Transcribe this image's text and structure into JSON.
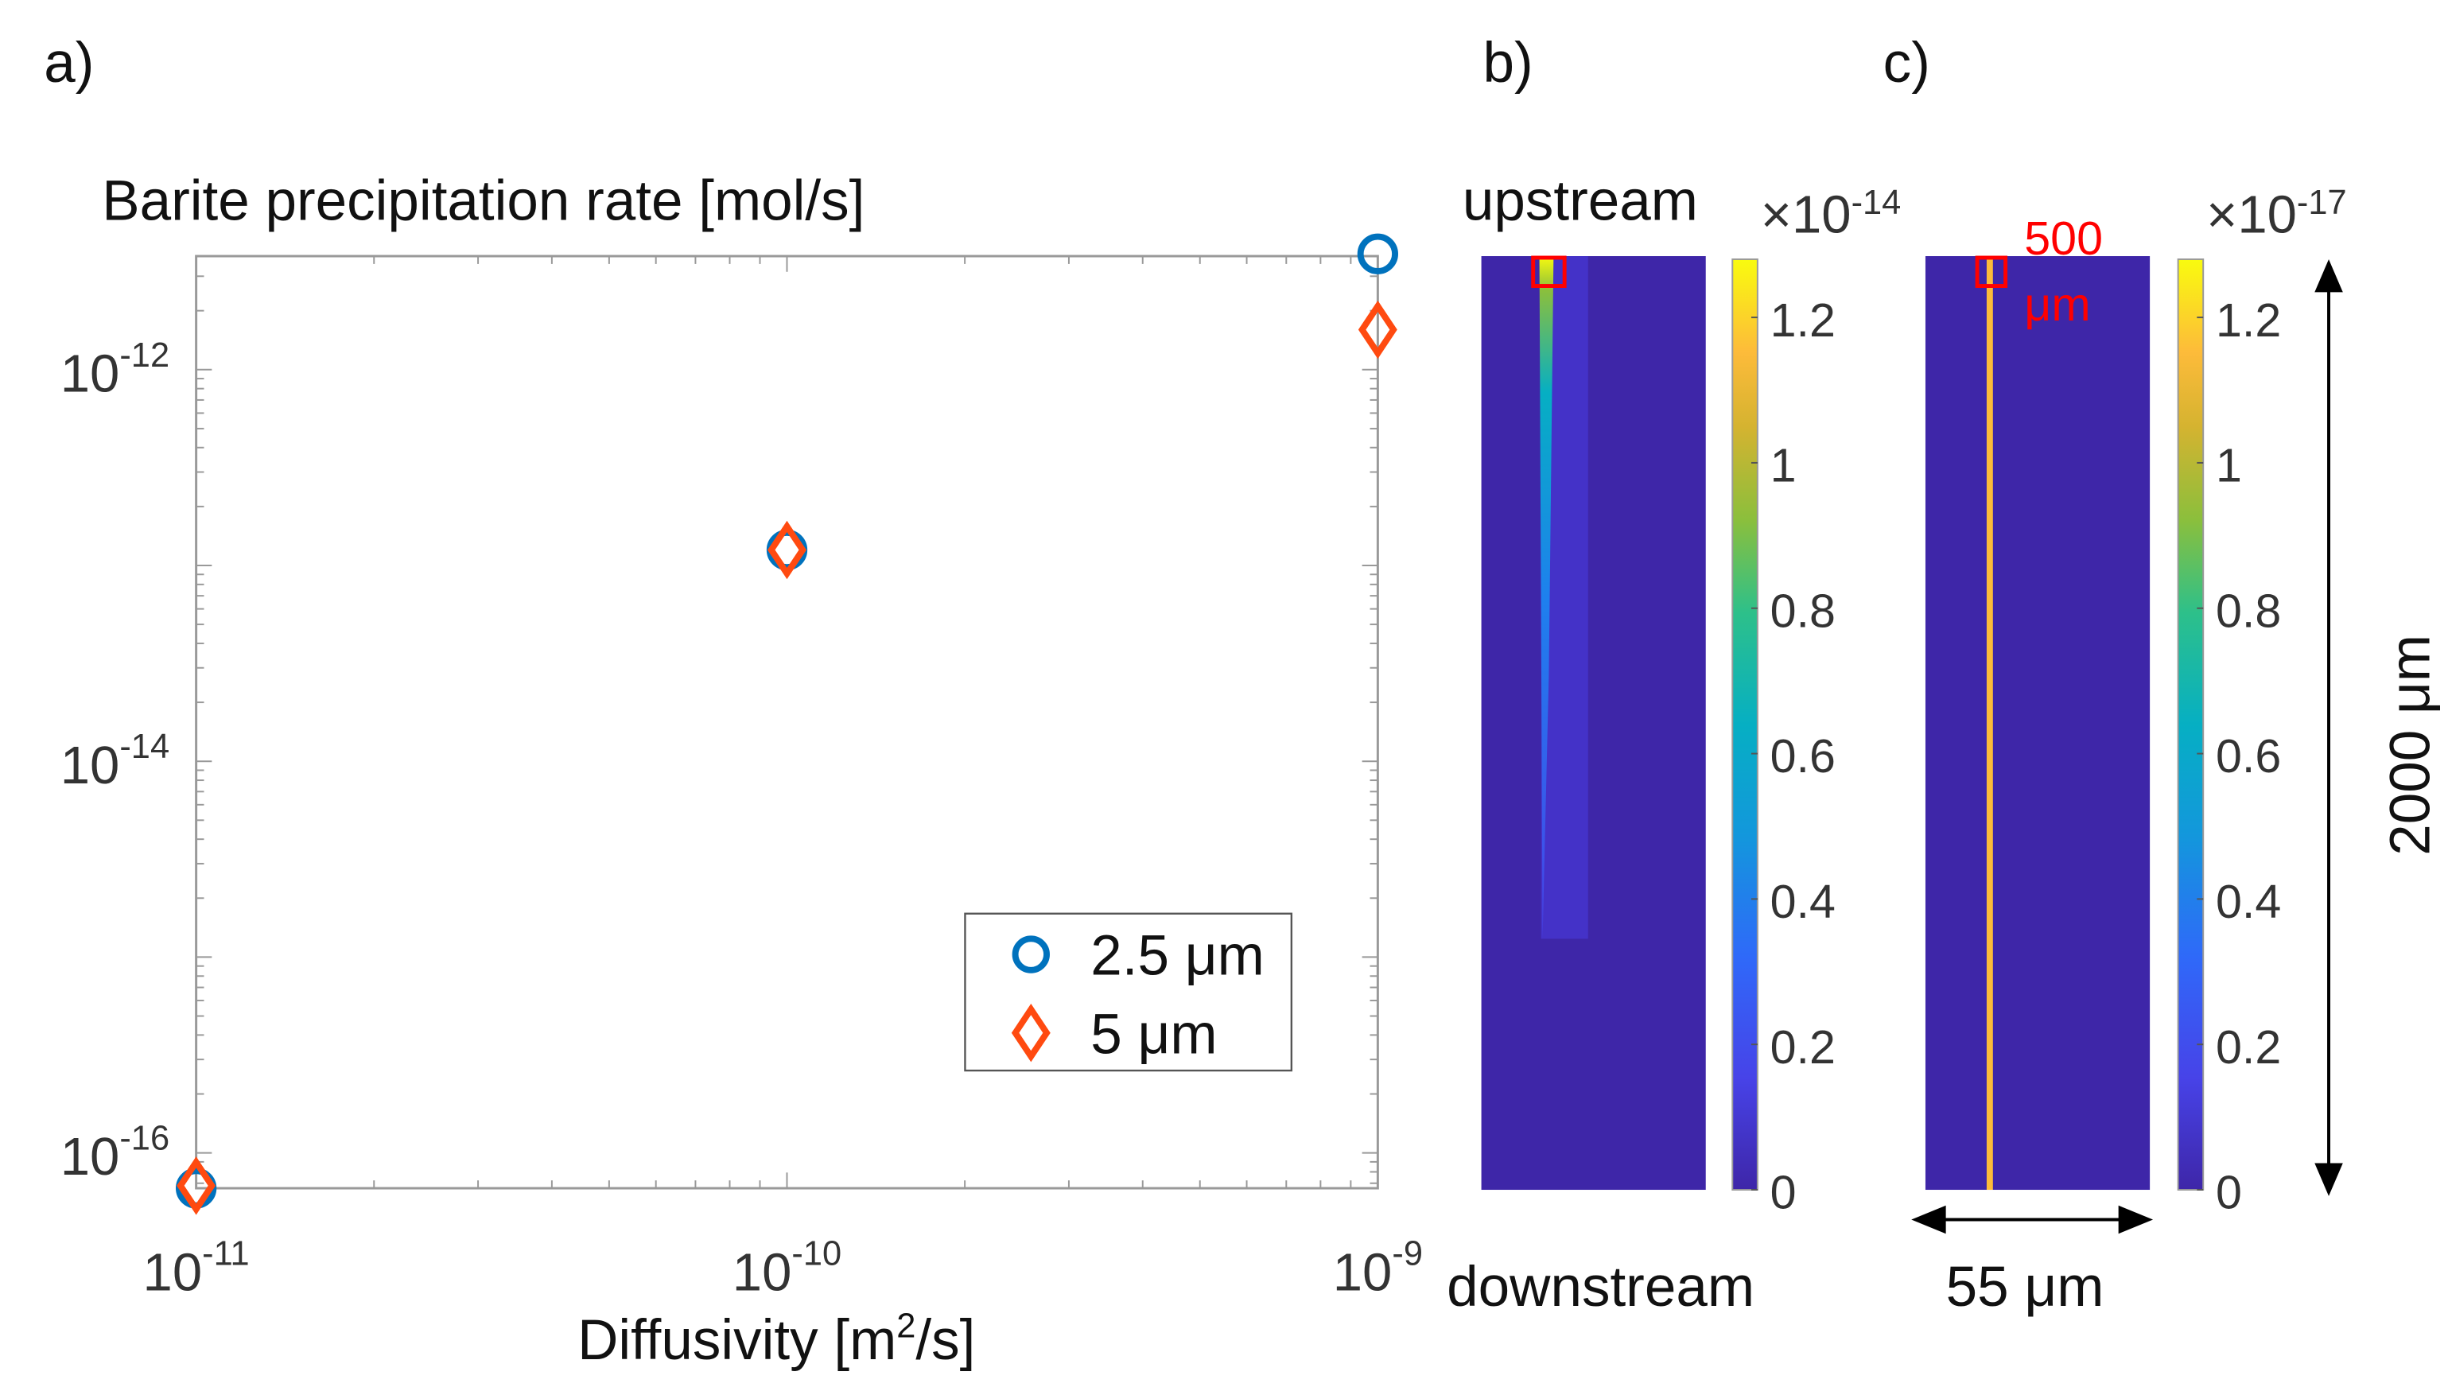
{
  "panels": {
    "a": {
      "label": "a)"
    },
    "b": {
      "label": "b)",
      "top_label": "upstream",
      "bottom_label": "downstream",
      "multiplier": "×10",
      "multiplier_exp": "-14"
    },
    "c": {
      "label": "c)",
      "annotation_line1": "500",
      "annotation_line2": "μm",
      "multiplier": "×10",
      "multiplier_exp": "-17",
      "width_label": "55 μm",
      "height_label": "2000 μm"
    }
  },
  "colorbar_ticks": [
    "0",
    "0.2",
    "0.4",
    "0.6",
    "0.8",
    "1",
    "1.2"
  ],
  "colors": {
    "circle": "#0072BD",
    "diamond": "#FF4A10",
    "field": "#3E26A8",
    "box": "#FF0000"
  },
  "chart_data": {
    "type": "scatter",
    "title": "Barite precipitation rate [mol/s]",
    "xlabel": "Diffusivity [m",
    "xlabel_sup": "2",
    "xlabel_end": "/s]",
    "xscale": "log",
    "yscale": "log",
    "xlim": [
      1e-11,
      1e-09
    ],
    "ylim": [
      6.6e-17,
      3.8e-12
    ],
    "xticks": [
      {
        "base": "10",
        "exp": "-11",
        "value": 1e-11
      },
      {
        "base": "10",
        "exp": "-10",
        "value": 1e-10
      },
      {
        "base": "10",
        "exp": "-9",
        "value": 1e-09
      }
    ],
    "yticks": [
      {
        "base": "10",
        "exp": "-12",
        "value": 1e-12
      },
      {
        "base": "10",
        "exp": "-14",
        "value": 1e-14
      },
      {
        "base": "10",
        "exp": "-16",
        "value": 1e-16
      }
    ],
    "legend_position": "bottom-right",
    "series": [
      {
        "name": "2.5 μm",
        "marker": "circle",
        "x": [
          1e-11,
          1e-10,
          1e-09
        ],
        "y": [
          6.6e-17,
          1.2e-13,
          3.9e-12
        ]
      },
      {
        "name": "5 μm",
        "marker": "diamond",
        "x": [
          1e-11,
          1e-10,
          1e-09
        ],
        "y": [
          6.8e-17,
          1.2e-13,
          1.6e-12
        ]
      }
    ]
  }
}
